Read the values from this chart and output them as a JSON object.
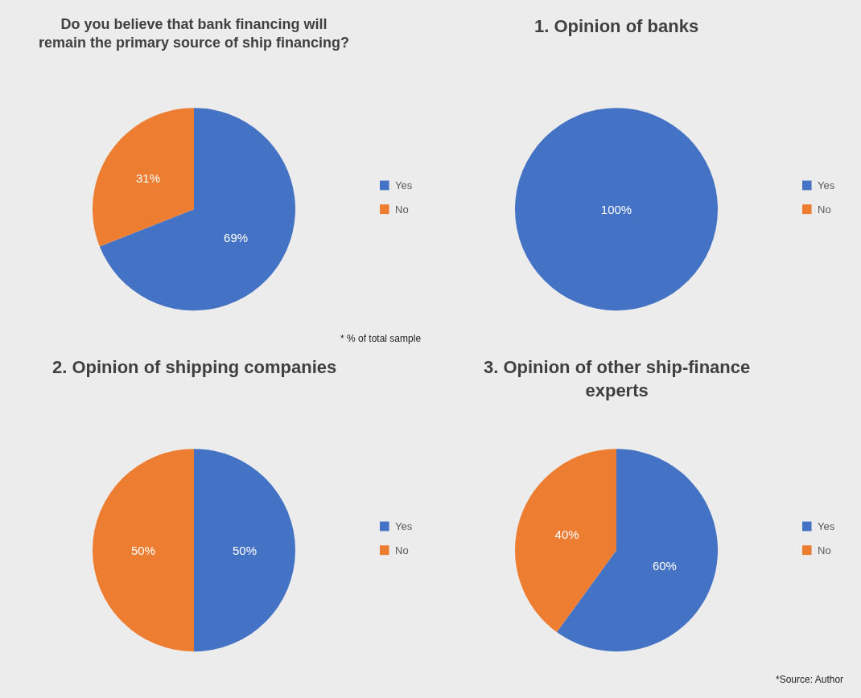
{
  "chart_data": [
    {
      "type": "pie",
      "title": "Do you believe that bank financing will remain the primary source of ship financing?",
      "categories": [
        "Yes",
        "No"
      ],
      "values": [
        69,
        31
      ],
      "colors": [
        "#4472c4",
        "#ed7d31"
      ],
      "value_labels": [
        "69%",
        "31%"
      ],
      "legend": "right",
      "annotations": [
        "* % of total sample"
      ]
    },
    {
      "type": "pie",
      "title": "1. Opinion of banks",
      "categories": [
        "Yes",
        "No"
      ],
      "values": [
        100,
        0
      ],
      "colors": [
        "#4472c4",
        "#ed7d31"
      ],
      "value_labels": [
        "100%",
        null
      ],
      "legend": "right"
    },
    {
      "type": "pie",
      "title": "2. Opinion of shipping companies",
      "categories": [
        "Yes",
        "No"
      ],
      "values": [
        50,
        50
      ],
      "colors": [
        "#4472c4",
        "#ed7d31"
      ],
      "value_labels": [
        "50%",
        "50%"
      ],
      "legend": "right"
    },
    {
      "type": "pie",
      "title": "3. Opinion of other ship-finance experts",
      "categories": [
        "Yes",
        "No"
      ],
      "values": [
        60,
        40
      ],
      "colors": [
        "#4472c4",
        "#ed7d31"
      ],
      "value_labels": [
        "60%",
        "40%"
      ],
      "legend": "right",
      "annotations": [
        "*Source: Author"
      ]
    }
  ]
}
